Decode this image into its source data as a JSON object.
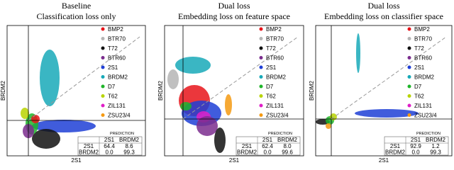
{
  "legend": [
    {
      "label": "BMP2",
      "color": "#e8141a"
    },
    {
      "label": "BTR70",
      "color": "#b5b5b5"
    },
    {
      "label": "T72",
      "color": "#111111"
    },
    {
      "label": "BTR60",
      "color": "#7b2d8e"
    },
    {
      "label": "2S1",
      "color": "#1f3fd6"
    },
    {
      "label": "BRDM2",
      "color": "#17a9b8"
    },
    {
      "label": "D7",
      "color": "#1fb52a"
    },
    {
      "label": "T62",
      "color": "#b8d400"
    },
    {
      "label": "ZIL131",
      "color": "#e01ec8"
    },
    {
      "label": "ZSU23/4",
      "color": "#f59a12"
    }
  ],
  "panels": [
    {
      "title": "Baseline",
      "subtitle": "Classification loss only",
      "x_label": "2S1",
      "y_label": "BRDM2",
      "table": {
        "header": "PREDICTION",
        "columns": [
          "2S1",
          "BRDM2"
        ],
        "rows": [
          [
            "2S1",
            "64.4",
            "8.6"
          ],
          [
            "BRDM2",
            "0.0",
            "99.3"
          ]
        ]
      }
    },
    {
      "title": "Dual loss",
      "subtitle": "Embedding loss on feature space",
      "x_label": "2S1",
      "y_label": "BRDM2",
      "table": {
        "header": "PREDICTION",
        "columns": [
          "2S1",
          "BRDM2"
        ],
        "rows": [
          [
            "2S1",
            "62.4",
            "8.0"
          ],
          [
            "BRDM2",
            "0.0",
            "99.6"
          ]
        ]
      }
    },
    {
      "title": "Dual loss",
      "subtitle": "Embedding loss on classifier space",
      "x_label": "2S1",
      "y_label": "BRDM2",
      "table": {
        "header": "PREDICTION",
        "columns": [
          "2S1",
          "BRDM2"
        ],
        "rows": [
          [
            "2S1",
            "92.9",
            "1.2"
          ],
          [
            "BRDM2",
            "0.0",
            "99.3"
          ]
        ]
      }
    }
  ]
}
